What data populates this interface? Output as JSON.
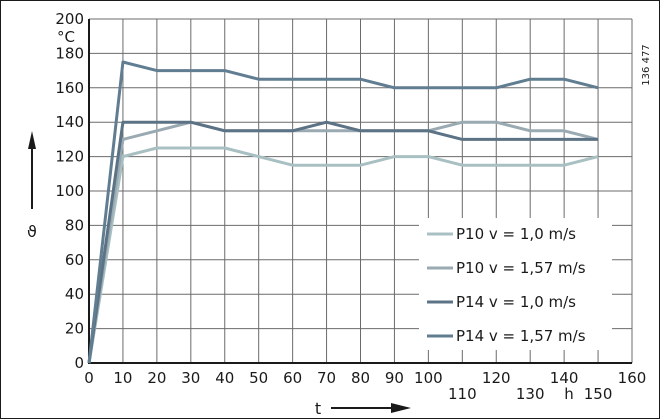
{
  "chart_data": {
    "type": "line",
    "xlabel": "t",
    "ylabel": "ϑ",
    "y_unit": "°C",
    "x_unit": "h",
    "drawing_code": "136 477",
    "xlim": [
      0,
      160
    ],
    "ylim": [
      0,
      200
    ],
    "x_ticks": [
      "0",
      "10",
      "20",
      "30",
      "40",
      "50",
      "60",
      "70",
      "80",
      "90",
      "100",
      "110",
      "120",
      "130",
      "140",
      "150",
      "160"
    ],
    "y_ticks": [
      "0",
      "20",
      "40",
      "60",
      "80",
      "100",
      "120",
      "140",
      "160",
      "180",
      "200"
    ],
    "grid": true,
    "legend_position": "bottom-right",
    "x": [
      0,
      10,
      20,
      30,
      40,
      50,
      60,
      70,
      80,
      90,
      100,
      110,
      120,
      130,
      140,
      150
    ],
    "series": [
      {
        "name": "P10 v = 1,0 m/s",
        "color": "#a9c0c3",
        "values": [
          0,
          120,
          125,
          125,
          125,
          120,
          115,
          115,
          115,
          120,
          120,
          115,
          115,
          115,
          115,
          120
        ]
      },
      {
        "name": "P10 v = 1,57 m/s",
        "color": "#9aaab2",
        "values": [
          0,
          130,
          135,
          140,
          135,
          135,
          135,
          135,
          135,
          135,
          135,
          140,
          140,
          135,
          135,
          130
        ]
      },
      {
        "name": "P14 v = 1,0 m/s",
        "color": "#5c7385",
        "values": [
          0,
          140,
          140,
          140,
          135,
          135,
          135,
          140,
          135,
          135,
          135,
          130,
          130,
          130,
          130,
          130
        ]
      },
      {
        "name": "P14 v = 1,57 m/s",
        "color": "#617d91",
        "values": [
          0,
          175,
          170,
          170,
          170,
          165,
          165,
          165,
          165,
          160,
          160,
          160,
          160,
          165,
          165,
          160
        ]
      }
    ]
  }
}
